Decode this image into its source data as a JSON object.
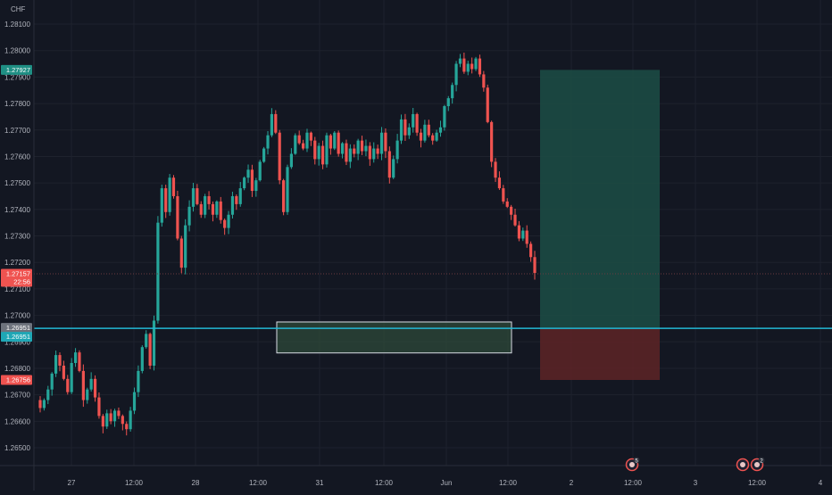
{
  "currency": "CHF",
  "price_tags": {
    "tp": "1.27927",
    "last": "1.27157",
    "countdown": "22:56",
    "entry_a": "1.26951",
    "entry_b": "1.26951",
    "sl": "1.26756"
  },
  "events": [
    {
      "icon": "flag-event-icon",
      "count": "5"
    },
    {
      "icon": "flag-event-icon",
      "count": ""
    },
    {
      "icon": "flag-event-icon",
      "count": "2"
    }
  ],
  "colors": {
    "background": "#131722",
    "up": "#26a69a",
    "down": "#ef5350",
    "horizontal_line": "#22b8d6",
    "target_zone": "#1c4a44",
    "stop_zone": "#5a2326",
    "axis_text": "#b2b5be"
  },
  "chart_data": {
    "type": "candlestick",
    "y_axis": {
      "position": "right",
      "unit": "CHF",
      "ticks": [
        "1.28100",
        "1.28000",
        "1.27900",
        "1.27800",
        "1.27700",
        "1.27600",
        "1.27500",
        "1.27400",
        "1.27300",
        "1.27200",
        "1.27100",
        "1.27000",
        "1.26900",
        "1.26800",
        "1.26700",
        "1.26600",
        "1.26500"
      ],
      "range": [
        1.2642,
        1.2822
      ]
    },
    "x_axis": {
      "ticks": [
        "27",
        "12:00",
        "28",
        "12:00",
        "31",
        "12:00",
        "Jun",
        "12:00",
        "2",
        "12:00",
        "3",
        "12:00",
        "4"
      ]
    },
    "series_close": [
      1.2665,
      1.2668,
      1.2672,
      1.2678,
      1.2685,
      1.2681,
      1.2676,
      1.2671,
      1.2682,
      1.2686,
      1.2679,
      1.2668,
      1.2672,
      1.2676,
      1.2669,
      1.2662,
      1.2658,
      1.2663,
      1.266,
      1.2664,
      1.2662,
      1.2659,
      1.2657,
      1.2664,
      1.2671,
      1.2679,
      1.2688,
      1.2693,
      1.2681,
      1.2698,
      1.2735,
      1.2748,
      1.2739,
      1.2752,
      1.2745,
      1.2729,
      1.2718,
      1.2734,
      1.2741,
      1.2748,
      1.2742,
      1.2738,
      1.2745,
      1.2742,
      1.2738,
      1.2743,
      1.2736,
      1.2733,
      1.2738,
      1.2745,
      1.2742,
      1.2748,
      1.2752,
      1.2755,
      1.2747,
      1.2751,
      1.2758,
      1.2763,
      1.2768,
      1.2776,
      1.2769,
      1.2751,
      1.2739,
      1.2756,
      1.2761,
      1.2768,
      1.2765,
      1.2763,
      1.2769,
      1.2766,
      1.2759,
      1.2764,
      1.2757,
      1.2768,
      1.2763,
      1.2769,
      1.2761,
      1.2765,
      1.2758,
      1.2763,
      1.2761,
      1.2766,
      1.2762,
      1.2764,
      1.2759,
      1.2763,
      1.2761,
      1.2769,
      1.2762,
      1.2752,
      1.2759,
      1.2766,
      1.2774,
      1.2768,
      1.2771,
      1.2776,
      1.2769,
      1.2766,
      1.2772,
      1.2768,
      1.2766,
      1.2769,
      1.2771,
      1.2779,
      1.2782,
      1.2787,
      1.2795,
      1.2797,
      1.2792,
      1.2795,
      1.2793,
      1.2797,
      1.2791,
      1.2786,
      1.2773,
      1.2758,
      1.2752,
      1.2748,
      1.2743,
      1.2741,
      1.2738,
      1.2734,
      1.2729,
      1.2732,
      1.2727,
      1.2722,
      1.2716
    ],
    "horizontal_line": 1.26951,
    "highlight_zone": {
      "top": 1.26975,
      "bottom": 1.26858
    },
    "position": {
      "target": 1.27927,
      "entry": 1.26951,
      "stop": 1.26756
    }
  }
}
